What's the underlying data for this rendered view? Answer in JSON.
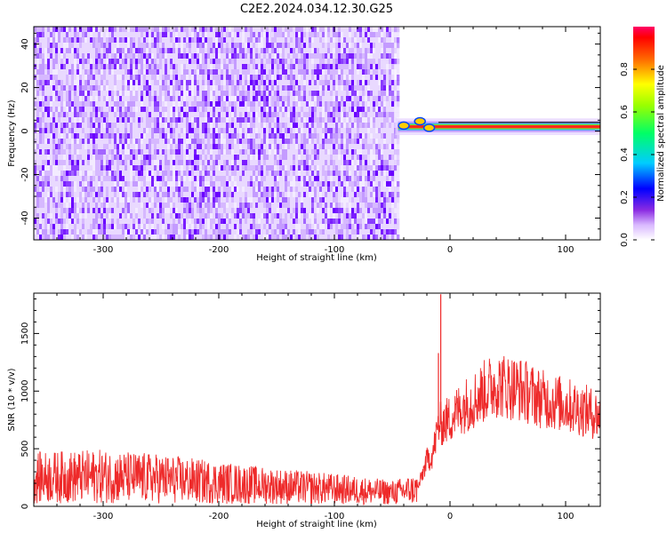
{
  "title": "C2E2.2024.034.12.30.G25",
  "chart_data": [
    {
      "type": "heatmap",
      "xlabel": "Height of straight line (km)",
      "ylabel": "Frequency (Hz)",
      "xlim": [
        -360,
        130
      ],
      "ylim": [
        -50,
        48
      ],
      "xticks": [
        -300,
        -200,
        -100,
        0,
        100
      ],
      "yticks": [
        -40,
        -20,
        0,
        20,
        40
      ],
      "noise_region": {
        "x_range": [
          -360,
          -45
        ],
        "freq_range": [
          -50,
          48
        ],
        "level": "low (0.0-0.2)"
      },
      "signal_band": {
        "x_range": [
          -45,
          130
        ],
        "freq_center": 2,
        "freq_halfwidth": 1.2,
        "level": "high (0.8-1.0)"
      },
      "colorbar": {
        "label": "Normalized spectral amplitude",
        "range": [
          0,
          1
        ],
        "ticks": [
          "0.0",
          "0.2",
          "0.4",
          "0.6",
          "0.8"
        ]
      }
    },
    {
      "type": "line",
      "xlabel": "Height of straight line (km)",
      "ylabel": "SNR (10 * v/v)",
      "xlim": [
        -360,
        130
      ],
      "ylim": [
        0,
        1850
      ],
      "xticks": [
        -300,
        -200,
        -100,
        0,
        100
      ],
      "yticks": [
        0,
        500,
        1000,
        1500
      ],
      "color": "#ee2a2a",
      "series": [
        {
          "x": [
            -360,
            -300,
            -250,
            -200,
            -150,
            -100,
            -50,
            -28,
            -20,
            -15,
            -10,
            0,
            10,
            20,
            30,
            40,
            60,
            80,
            100,
            120,
            130
          ],
          "y": [
            250,
            260,
            240,
            205,
            175,
            150,
            120,
            150,
            400,
            450,
            700,
            760,
            860,
            920,
            1000,
            1060,
            1020,
            930,
            880,
            820,
            780
          ]
        }
      ],
      "spikes": [
        {
          "x": -8,
          "y": 1840
        },
        {
          "x": -10,
          "y": 1330
        }
      ]
    }
  ]
}
